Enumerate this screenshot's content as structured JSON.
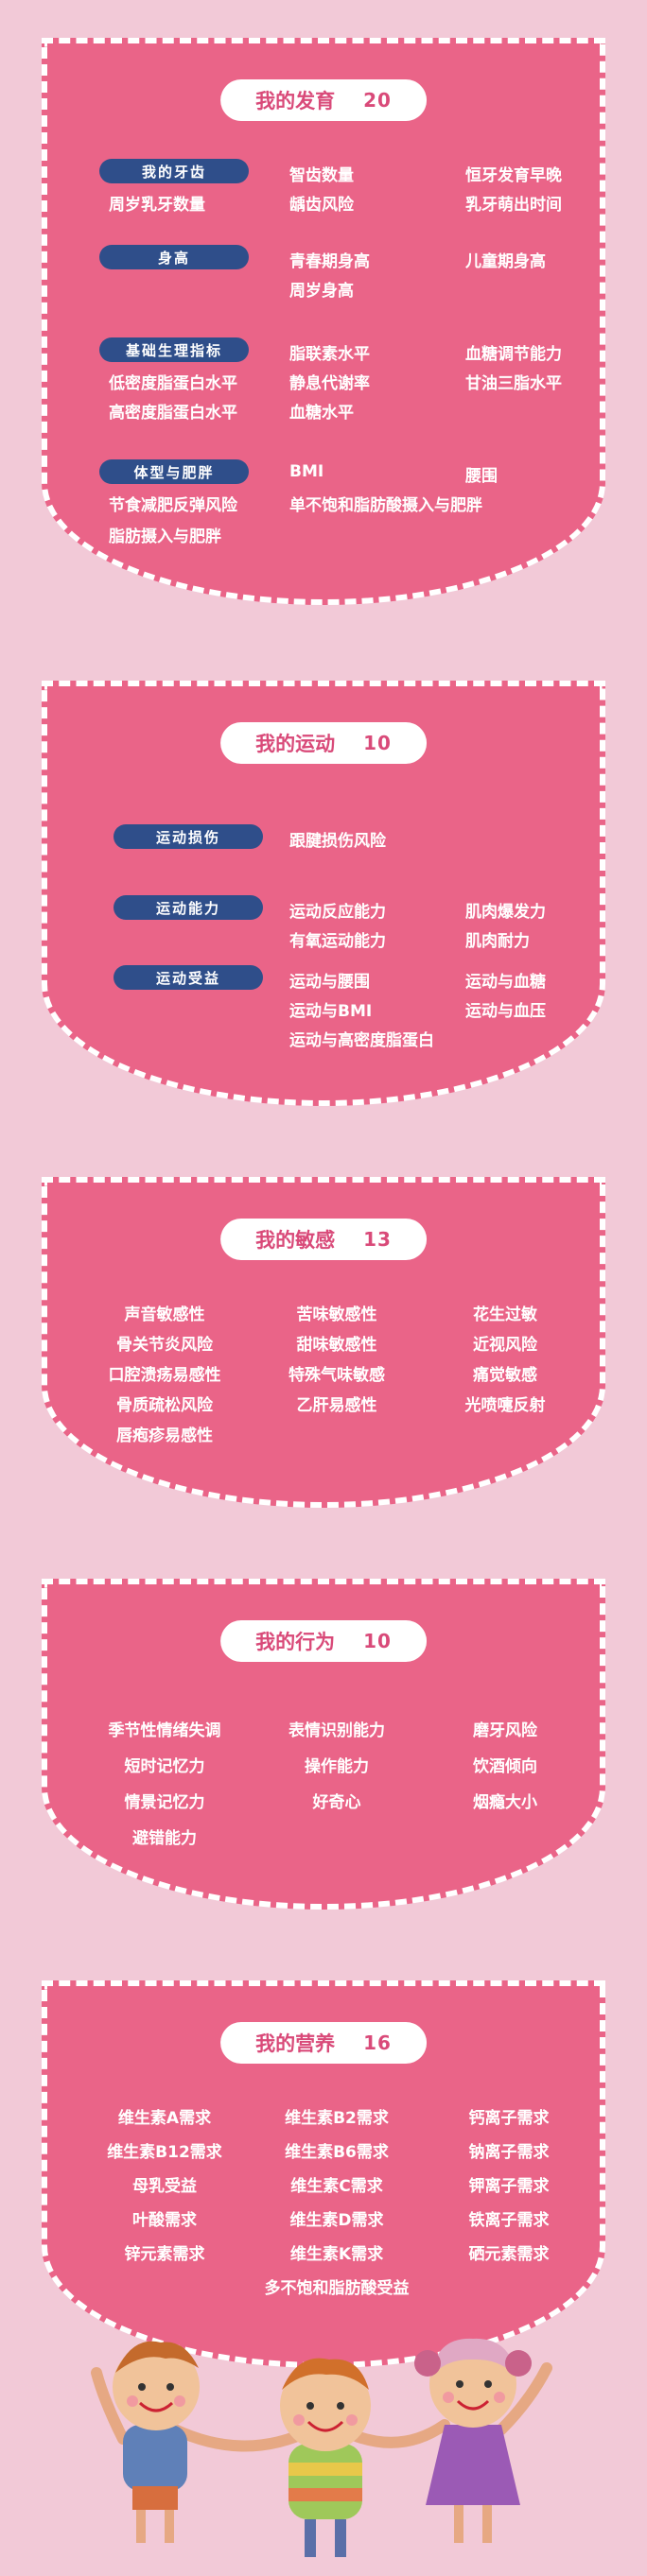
{
  "colors": {
    "background": "#f2c9d7",
    "card": "#ea6488",
    "pill": "#2f4e8a",
    "title_text": "#d94a79"
  },
  "development": {
    "title": "我的发育",
    "count": "20",
    "groups": [
      {
        "label": "我的牙齿",
        "items": [
          "智齿数量",
          "恒牙发育早晚",
          "周岁乳牙数量",
          "龋齿风险",
          "乳牙萌出时间"
        ]
      },
      {
        "label": "身高",
        "items": [
          "青春期身高",
          "儿童期身高",
          "周岁身高"
        ]
      },
      {
        "label": "基础生理指标",
        "items": [
          "脂联素水平",
          "血糖调节能力",
          "低密度脂蛋白水平",
          "静息代谢率",
          "甘油三脂水平",
          "高密度脂蛋白水平",
          "血糖水平"
        ]
      },
      {
        "label": "体型与肥胖",
        "items": [
          "BMI",
          "腰围",
          "节食减肥反弹风险",
          "单不饱和脂肪酸摄入与肥胖",
          "脂肪摄入与肥胖"
        ]
      }
    ]
  },
  "sport": {
    "title": "我的运动",
    "count": "10",
    "groups": [
      {
        "label": "运动损伤",
        "items": [
          "跟腱损伤风险"
        ]
      },
      {
        "label": "运动能力",
        "items": [
          "运动反应能力",
          "肌肉爆发力",
          "有氧运动能力",
          "肌肉耐力"
        ]
      },
      {
        "label": "运动受益",
        "items": [
          "运动与腰围",
          "运动与血糖",
          "运动与BMI",
          "运动与血压",
          "运动与高密度脂蛋白"
        ]
      }
    ]
  },
  "sensitivity": {
    "title": "我的敏感",
    "count": "13",
    "items": [
      "声音敏感性",
      "苦味敏感性",
      "花生过敏",
      "骨关节炎风险",
      "甜味敏感性",
      "近视风险",
      "口腔溃疡易感性",
      "特殊气味敏感",
      "痛觉敏感",
      "骨质疏松风险",
      "乙肝易感性",
      "光喷嚏反射",
      "唇疱疹易感性"
    ]
  },
  "behavior": {
    "title": "我的行为",
    "count": "10",
    "items": [
      "季节性情绪失调",
      "表情识别能力",
      "磨牙风险",
      "短时记忆力",
      "操作能力",
      "饮酒倾向",
      "情景记忆力",
      "好奇心",
      "烟瘾大小",
      "避错能力"
    ]
  },
  "nutrition": {
    "title": "我的营养",
    "count": "16",
    "items": [
      "维生素A需求",
      "维生素B2需求",
      "钙离子需求",
      "维生素B12需求",
      "维生素B6需求",
      "钠离子需求",
      "母乳受益",
      "维生素C需求",
      "钾离子需求",
      "叶酸需求",
      "维生素D需求",
      "铁离子需求",
      "锌元素需求",
      "维生素K需求",
      "硒元素需求",
      "多不饱和脂肪酸受益"
    ]
  }
}
